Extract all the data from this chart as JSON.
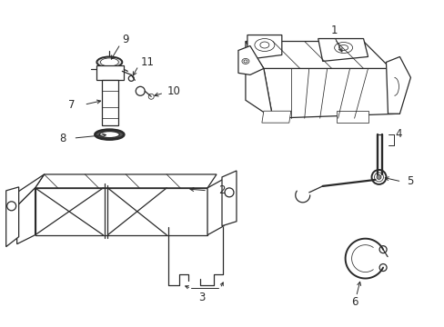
{
  "background_color": "#ffffff",
  "line_color": "#2a2a2a",
  "label_color": "#000000",
  "figsize": [
    4.89,
    3.6
  ],
  "dpi": 100,
  "lw": 0.9,
  "lw_thin": 0.55,
  "lw_thick": 1.4,
  "font_size": 8.5
}
